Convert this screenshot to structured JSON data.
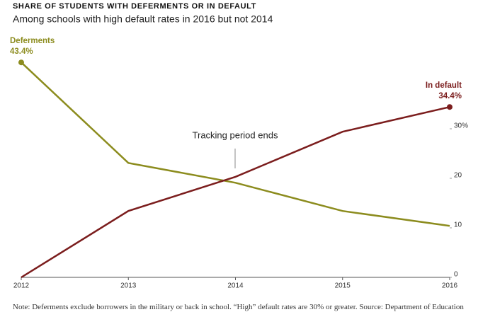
{
  "chart_data": {
    "type": "line",
    "title": "SHARE OF STUDENTS WITH DEFERMENTS OR IN DEFAULT",
    "subtitle": "Among schools with high default rates in 2016 but not 2014",
    "x": [
      2012,
      2013,
      2014,
      2015,
      2016
    ],
    "xlim": [
      2012,
      2016
    ],
    "xticks": [
      2012,
      2013,
      2014,
      2015,
      2016
    ],
    "ylim": [
      0,
      47
    ],
    "yticks": [
      0,
      10,
      20,
      {
        "value": 30,
        "label": "30%"
      }
    ],
    "series": [
      {
        "name": "Deferments",
        "color": "#8c8c1e",
        "values": [
          43.4,
          23.1,
          19.1,
          13.4,
          10.4
        ],
        "value_labels": [
          "43.4%",
          null,
          null,
          null,
          null
        ]
      },
      {
        "name": "In default",
        "color": "#7b1d1d",
        "values": [
          0,
          13.4,
          20.3,
          29.4,
          34.4
        ],
        "value_labels": [
          null,
          null,
          null,
          null,
          "34.4%"
        ]
      }
    ],
    "annotations": [
      "Tracking period ends"
    ],
    "note": "Note: Deferments exclude borrowers in the military or back in school. “High” default rates are 30% or greater. Source: Department of Education"
  }
}
